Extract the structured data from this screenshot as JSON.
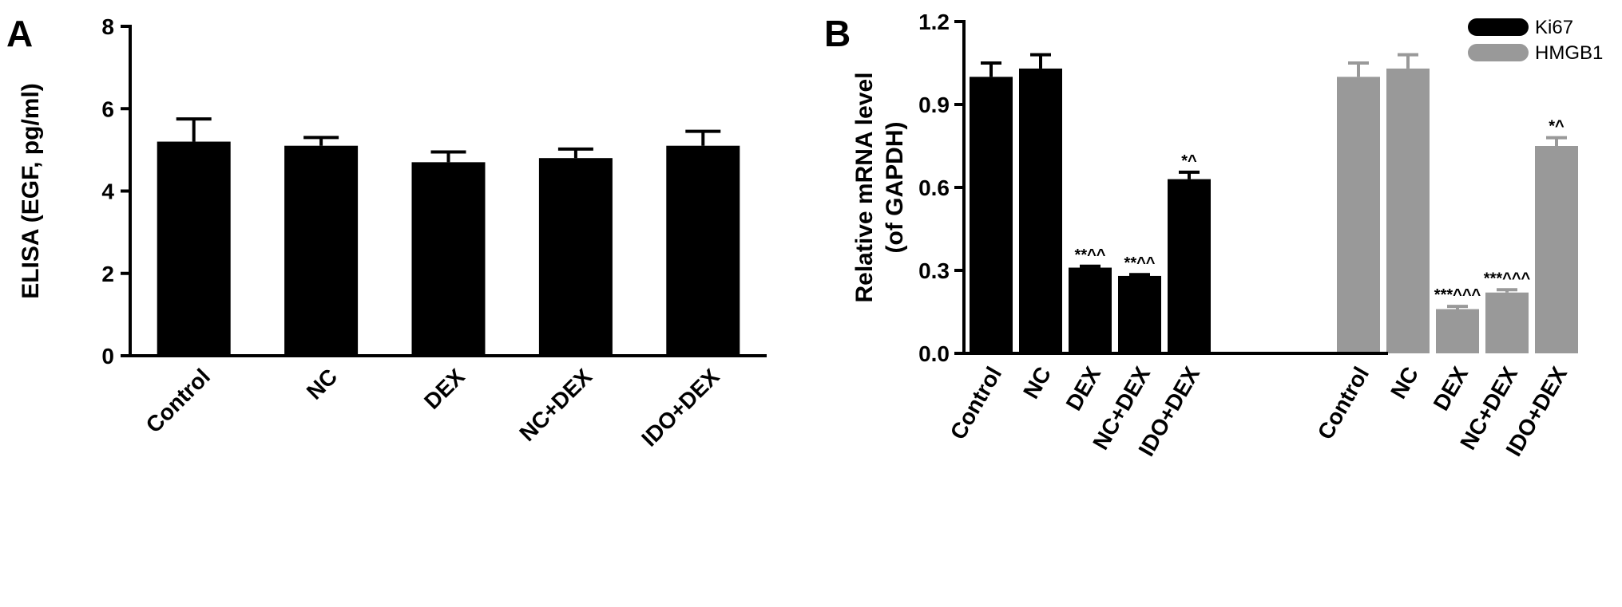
{
  "chart_data": [
    {
      "panel": "A",
      "type": "bar",
      "ylabel": "ELISA (EGF, pg/ml)",
      "ylim": [
        0,
        8
      ],
      "yticks": [
        "0",
        "2",
        "4",
        "6",
        "8"
      ],
      "categories": [
        "Control",
        "NC",
        "DEX",
        "NC+DEX",
        "IDO+DEX"
      ],
      "series": [
        {
          "values": [
            5.2,
            5.1,
            4.7,
            4.8,
            5.1
          ],
          "errors": [
            0.55,
            0.2,
            0.25,
            0.22,
            0.35
          ],
          "color": "#000000"
        }
      ]
    },
    {
      "panel": "B",
      "type": "bar",
      "ylabel_lines": [
        "Relative mRNA level",
        "(of GAPDH)"
      ],
      "ylim": [
        0,
        1.2
      ],
      "yticks": [
        "0.0",
        "0.3",
        "0.6",
        "0.9",
        "1.2"
      ],
      "categories": [
        "Control",
        "NC",
        "DEX",
        "NC+DEX",
        "IDO+DEX"
      ],
      "legend_position": "top-right",
      "series": [
        {
          "name": "Ki67",
          "color": "#000000",
          "values": [
            1.0,
            1.03,
            0.31,
            0.28,
            0.63
          ],
          "errors": [
            0.05,
            0.05,
            0.005,
            0.005,
            0.025
          ],
          "annotations": [
            "",
            "",
            "**^^",
            "**^^",
            "*^"
          ]
        },
        {
          "name": "HMGB1",
          "color": "#999999",
          "values": [
            1.0,
            1.03,
            0.16,
            0.22,
            0.75
          ],
          "errors": [
            0.05,
            0.05,
            0.01,
            0.01,
            0.03
          ],
          "annotations": [
            "",
            "",
            "***^^^",
            "***^^^",
            "*^"
          ]
        }
      ]
    }
  ]
}
